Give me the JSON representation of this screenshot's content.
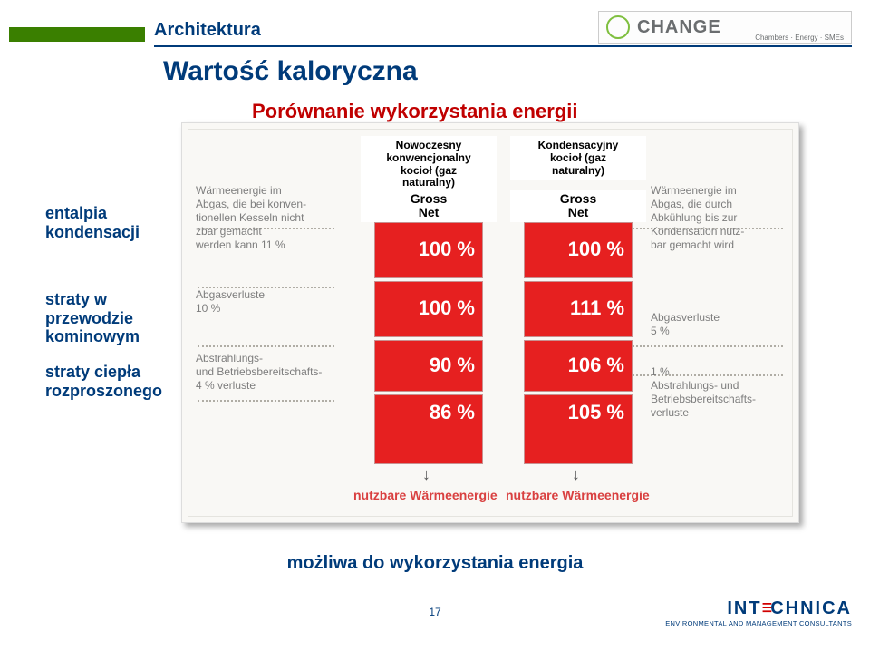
{
  "header": {
    "category": "Architektura",
    "logo_text": "CHANGE",
    "logo_sub": "Chambers · Energy · SMEs"
  },
  "title": "Wartość kaloryczna",
  "subtitle": "Porównanie wykorzystania energii",
  "left_labels": {
    "l1": "entalpia\nkondensacji",
    "l2": "straty w\nprzewodzie\nkominowym",
    "l3": "straty ciepła\nrozproszonego"
  },
  "grey_text": {
    "left_top": "Wärmeenergie im\nAbgas, die bei konven-\ntionellen Kesseln nicht\nzbar gemacht\nwerden kann   11 %",
    "left_mid": "Abgasverluste\n10 %",
    "left_bot": "Abstrahlungs-\nund Betriebsbereitschafts-\n4 %   verluste",
    "right_top": "Wärmeenergie im\nAbgas, die durch\nAbkühlung bis zur\nKondensation nutz-\nbar gemacht wird",
    "right_mid": "Abgasverluste\n5 %",
    "right_bot": "1 %\nAbstrahlungs- und\nBetriebsbereitschafts-\nverluste"
  },
  "columns": {
    "col1": {
      "head": "Nowoczesny\nkonwencjonalny\nkocioł (gaz\nnaturalny)",
      "sub": "Gross\nNet",
      "segments": [
        {
          "label": "100 %"
        },
        {
          "label": "100 %"
        },
        {
          "label": "90 %"
        },
        {
          "label": "86 %"
        }
      ]
    },
    "col2": {
      "head": "Kondensacyjny\nkocioł (gaz\nnaturalny)",
      "sub": "Gross\nNet",
      "segments": [
        {
          "label": "100 %"
        },
        {
          "label": "111 %"
        },
        {
          "label": "106 %"
        },
        {
          "label": "105 %"
        }
      ]
    }
  },
  "nutz1": "nutzbare Wärmeenergie",
  "nutz2": "nutzbare Wärmeenergie",
  "bottom_caption": "możliwa do wykorzystania energia",
  "page": "17",
  "footer": {
    "name": "INTECHNICA",
    "tag": "ENVIRONMENTAL AND MANAGEMENT CONSULTANTS"
  },
  "style": {
    "col1_bar_tops": [
      95,
      160,
      225,
      285
    ],
    "col1_bar_heights": [
      60,
      60,
      55,
      75
    ],
    "col2_bar_tops": [
      95,
      160,
      225,
      285
    ],
    "col2_bar_heights": [
      60,
      60,
      55,
      75
    ],
    "bar_red": "#e62020",
    "guide_dotted": "#b0ada5"
  }
}
